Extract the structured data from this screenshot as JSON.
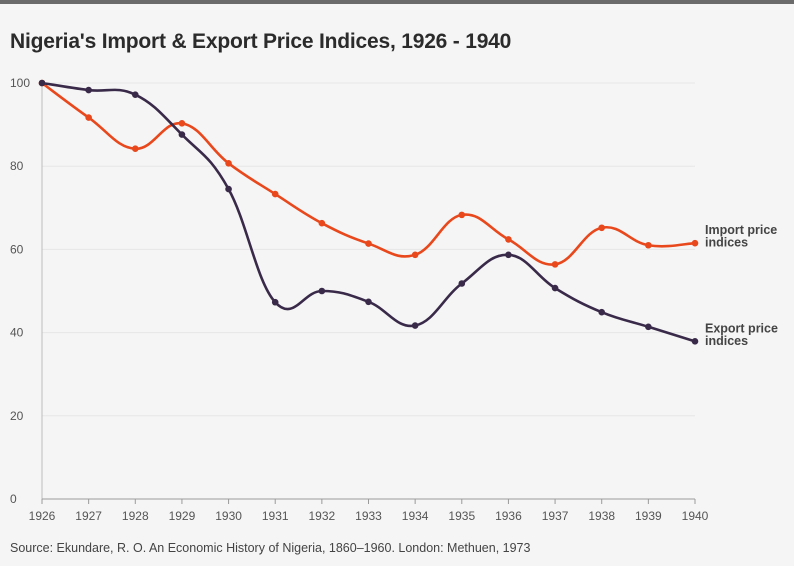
{
  "chart_data": {
    "type": "line",
    "title": "Nigeria's Import & Export Price Indices, 1926 - 1940",
    "xlabel": "",
    "ylabel": "",
    "categories": [
      "1926",
      "1927",
      "1928",
      "1929",
      "1930",
      "1931",
      "1932",
      "1933",
      "1934",
      "1935",
      "1936",
      "1937",
      "1938",
      "1939",
      "1940"
    ],
    "ylim": [
      0,
      100
    ],
    "yticks": [
      0,
      20,
      40,
      60,
      80,
      100
    ],
    "grid": true,
    "series": [
      {
        "name": "Import price indices",
        "label_lines": [
          "Import price",
          "indices"
        ],
        "color": "#e8481c",
        "values": [
          100,
          91.7,
          84.2,
          90.3,
          80.7,
          73.3,
          66.3,
          61.4,
          58.7,
          68.3,
          62.4,
          56.4,
          65.2,
          61,
          61.5
        ]
      },
      {
        "name": "Export price indices",
        "label_lines": [
          "Export price",
          "indices"
        ],
        "color": "#3a2a4a",
        "values": [
          100,
          98.3,
          97.2,
          87.6,
          74.5,
          47.3,
          50,
          47.4,
          41.7,
          51.8,
          58.7,
          50.7,
          44.9,
          41.4,
          37.9
        ]
      }
    ]
  },
  "source": "Source: Ekundare, R. O. An Economic History of Nigeria, 1860–1960. London: Methuen, 1973"
}
